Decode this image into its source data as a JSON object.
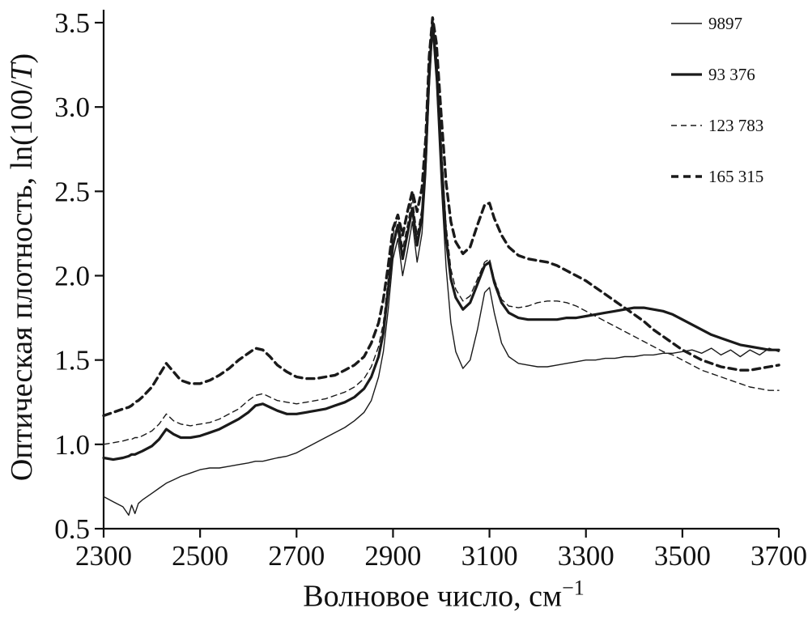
{
  "figure": {
    "background": "#ffffff",
    "line_color": "#1a1a1a",
    "axis_color": "#111111"
  },
  "chart_data": {
    "type": "line",
    "title": "",
    "xlabel": "Волновое число, см⁻¹",
    "xlabel_parts": {
      "pre": "Волновое число, см",
      "sup": "−1"
    },
    "ylabel": "Оптическая плотность, ln(100/T)",
    "ylabel_parts": {
      "pre": "Оптическая плотность, ln(100/",
      "it": "T",
      "post": ")"
    },
    "xlim": [
      2300,
      3700
    ],
    "ylim": [
      0.5,
      3.5
    ],
    "x_ticks": [
      2300,
      2500,
      2700,
      2900,
      3100,
      3300,
      3500,
      3700
    ],
    "y_ticks": [
      0.5,
      1.0,
      1.5,
      2.0,
      2.5,
      3.0,
      3.5
    ],
    "grid": false,
    "legend_position": "top-right",
    "x": [
      2300,
      2320,
      2340,
      2352,
      2358,
      2365,
      2372,
      2380,
      2400,
      2415,
      2430,
      2445,
      2460,
      2480,
      2500,
      2520,
      2540,
      2560,
      2580,
      2600,
      2615,
      2630,
      2645,
      2660,
      2680,
      2700,
      2720,
      2740,
      2760,
      2780,
      2800,
      2820,
      2840,
      2855,
      2870,
      2880,
      2890,
      2900,
      2910,
      2920,
      2930,
      2940,
      2950,
      2960,
      2968,
      2975,
      2982,
      2990,
      3000,
      3010,
      3020,
      3030,
      3045,
      3060,
      3075,
      3090,
      3100,
      3110,
      3125,
      3140,
      3160,
      3180,
      3200,
      3220,
      3240,
      3260,
      3280,
      3300,
      3320,
      3340,
      3360,
      3380,
      3400,
      3420,
      3440,
      3460,
      3480,
      3500,
      3520,
      3540,
      3560,
      3580,
      3600,
      3620,
      3640,
      3660,
      3680,
      3700
    ],
    "series": [
      {
        "name": "9897",
        "style": "thin-solid",
        "stroke_width": 1.4,
        "dash": "",
        "values": [
          0.69,
          0.66,
          0.63,
          0.58,
          0.64,
          0.59,
          0.65,
          0.67,
          0.71,
          0.74,
          0.77,
          0.79,
          0.81,
          0.83,
          0.85,
          0.86,
          0.86,
          0.87,
          0.88,
          0.89,
          0.9,
          0.9,
          0.91,
          0.92,
          0.93,
          0.95,
          0.98,
          1.01,
          1.04,
          1.07,
          1.1,
          1.14,
          1.19,
          1.26,
          1.4,
          1.55,
          1.8,
          2.1,
          2.22,
          2.0,
          2.15,
          2.32,
          2.08,
          2.25,
          2.6,
          3.1,
          3.45,
          3.15,
          2.55,
          2.05,
          1.72,
          1.55,
          1.45,
          1.5,
          1.68,
          1.9,
          1.93,
          1.78,
          1.6,
          1.52,
          1.48,
          1.47,
          1.46,
          1.46,
          1.47,
          1.48,
          1.49,
          1.5,
          1.5,
          1.51,
          1.51,
          1.52,
          1.52,
          1.53,
          1.53,
          1.54,
          1.54,
          1.55,
          1.56,
          1.54,
          1.57,
          1.53,
          1.56,
          1.52,
          1.56,
          1.53,
          1.57,
          1.55
        ]
      },
      {
        "name": "93 376",
        "style": "thick-solid",
        "stroke_width": 3.2,
        "dash": "",
        "values": [
          0.92,
          0.91,
          0.92,
          0.93,
          0.94,
          0.94,
          0.95,
          0.96,
          0.99,
          1.03,
          1.09,
          1.06,
          1.04,
          1.04,
          1.05,
          1.07,
          1.09,
          1.12,
          1.15,
          1.19,
          1.23,
          1.24,
          1.22,
          1.2,
          1.18,
          1.18,
          1.19,
          1.2,
          1.21,
          1.23,
          1.25,
          1.28,
          1.33,
          1.4,
          1.52,
          1.66,
          1.92,
          2.18,
          2.3,
          2.1,
          2.25,
          2.4,
          2.18,
          2.35,
          2.7,
          3.2,
          3.5,
          3.25,
          2.7,
          2.22,
          1.98,
          1.87,
          1.8,
          1.84,
          1.95,
          2.06,
          2.08,
          1.96,
          1.84,
          1.78,
          1.75,
          1.74,
          1.74,
          1.74,
          1.74,
          1.75,
          1.75,
          1.76,
          1.77,
          1.78,
          1.79,
          1.8,
          1.81,
          1.81,
          1.8,
          1.79,
          1.77,
          1.74,
          1.71,
          1.68,
          1.65,
          1.63,
          1.61,
          1.59,
          1.58,
          1.57,
          1.56,
          1.56
        ]
      },
      {
        "name": "123 783",
        "style": "thin-dashed",
        "stroke_width": 1.4,
        "dash": "7,5",
        "values": [
          1.0,
          1.01,
          1.02,
          1.03,
          1.03,
          1.04,
          1.04,
          1.05,
          1.08,
          1.12,
          1.18,
          1.14,
          1.12,
          1.11,
          1.12,
          1.13,
          1.15,
          1.18,
          1.21,
          1.26,
          1.29,
          1.3,
          1.28,
          1.26,
          1.25,
          1.24,
          1.25,
          1.26,
          1.27,
          1.29,
          1.31,
          1.34,
          1.39,
          1.46,
          1.58,
          1.72,
          1.98,
          2.24,
          2.36,
          2.16,
          2.3,
          2.46,
          2.24,
          2.4,
          2.75,
          3.25,
          3.52,
          3.3,
          2.78,
          2.3,
          2.04,
          1.92,
          1.85,
          1.88,
          1.98,
          2.08,
          2.1,
          1.98,
          1.86,
          1.82,
          1.81,
          1.82,
          1.84,
          1.85,
          1.85,
          1.84,
          1.82,
          1.79,
          1.76,
          1.73,
          1.7,
          1.67,
          1.64,
          1.61,
          1.58,
          1.55,
          1.53,
          1.5,
          1.47,
          1.44,
          1.42,
          1.4,
          1.38,
          1.36,
          1.34,
          1.33,
          1.32,
          1.32
        ]
      },
      {
        "name": "165 315",
        "style": "thick-dashed",
        "stroke_width": 3.4,
        "dash": "9,6",
        "values": [
          1.17,
          1.19,
          1.21,
          1.22,
          1.23,
          1.25,
          1.26,
          1.28,
          1.34,
          1.41,
          1.48,
          1.43,
          1.38,
          1.36,
          1.36,
          1.38,
          1.41,
          1.45,
          1.5,
          1.54,
          1.57,
          1.56,
          1.52,
          1.47,
          1.43,
          1.4,
          1.39,
          1.39,
          1.4,
          1.41,
          1.44,
          1.47,
          1.52,
          1.6,
          1.72,
          1.86,
          2.06,
          2.28,
          2.36,
          2.24,
          2.38,
          2.5,
          2.38,
          2.52,
          2.82,
          3.3,
          3.53,
          3.38,
          2.95,
          2.55,
          2.32,
          2.2,
          2.13,
          2.17,
          2.3,
          2.42,
          2.43,
          2.34,
          2.24,
          2.17,
          2.12,
          2.1,
          2.09,
          2.08,
          2.06,
          2.03,
          2.0,
          1.97,
          1.93,
          1.89,
          1.85,
          1.81,
          1.77,
          1.73,
          1.68,
          1.64,
          1.6,
          1.56,
          1.53,
          1.5,
          1.48,
          1.46,
          1.45,
          1.44,
          1.44,
          1.45,
          1.46,
          1.47
        ]
      }
    ]
  }
}
